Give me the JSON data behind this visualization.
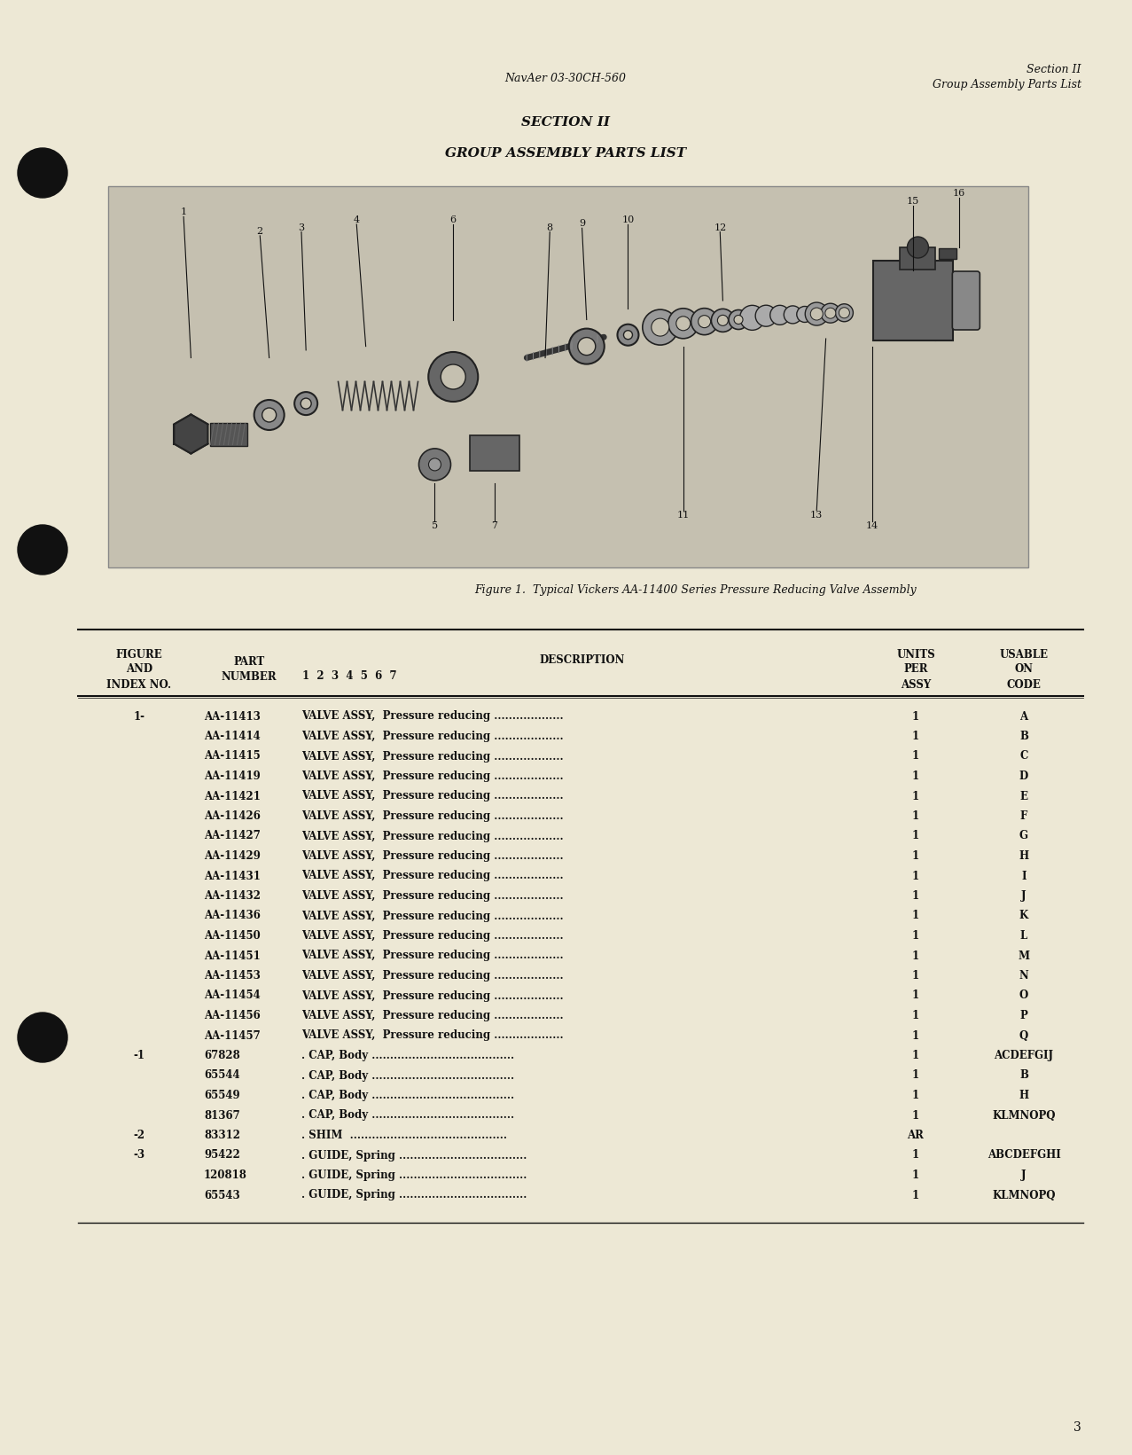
{
  "bg_color": "#ede8d5",
  "header_left": "NavAer 03-30CH-560",
  "header_right_line1": "Section II",
  "header_right_line2": "Group Assembly Parts List",
  "title_line1": "SECTION II",
  "title_line2": "GROUP ASSEMBLY PARTS LIST",
  "figure_caption": "Figure 1.  Typical Vickers AA-11400 Series Pressure Reducing Valve Assembly",
  "table_rows": [
    [
      "1-",
      "AA-11413",
      "VALVE ASSY,  Pressure reducing ...................",
      "1",
      "A"
    ],
    [
      "",
      "AA-11414",
      "VALVE ASSY,  Pressure reducing ...................",
      "1",
      "B"
    ],
    [
      "",
      "AA-11415",
      "VALVE ASSY,  Pressure reducing ...................",
      "1",
      "C"
    ],
    [
      "",
      "AA-11419",
      "VALVE ASSY,  Pressure reducing ...................",
      "1",
      "D"
    ],
    [
      "",
      "AA-11421",
      "VALVE ASSY,  Pressure reducing ...................",
      "1",
      "E"
    ],
    [
      "",
      "AA-11426",
      "VALVE ASSY,  Pressure reducing ...................",
      "1",
      "F"
    ],
    [
      "",
      "AA-11427",
      "VALVE ASSY,  Pressure reducing ...................",
      "1",
      "G"
    ],
    [
      "",
      "AA-11429",
      "VALVE ASSY,  Pressure reducing ...................",
      "1",
      "H"
    ],
    [
      "",
      "AA-11431",
      "VALVE ASSY,  Pressure reducing ...................",
      "1",
      "I"
    ],
    [
      "",
      "AA-11432",
      "VALVE ASSY,  Pressure reducing ...................",
      "1",
      "J"
    ],
    [
      "",
      "AA-11436",
      "VALVE ASSY,  Pressure reducing ...................",
      "1",
      "K"
    ],
    [
      "",
      "AA-11450",
      "VALVE ASSY,  Pressure reducing ...................",
      "1",
      "L"
    ],
    [
      "",
      "AA-11451",
      "VALVE ASSY,  Pressure reducing ...................",
      "1",
      "M"
    ],
    [
      "",
      "AA-11453",
      "VALVE ASSY,  Pressure reducing ...................",
      "1",
      "N"
    ],
    [
      "",
      "AA-11454",
      "VALVE ASSY,  Pressure reducing ...................",
      "1",
      "O"
    ],
    [
      "",
      "AA-11456",
      "VALVE ASSY,  Pressure reducing ...................",
      "1",
      "P"
    ],
    [
      "",
      "AA-11457",
      "VALVE ASSY,  Pressure reducing ...................",
      "1",
      "Q"
    ],
    [
      "-1",
      "67828",
      ". CAP, Body .......................................",
      "1",
      "ACDEFGIJ"
    ],
    [
      "",
      "65544",
      ". CAP, Body .......................................",
      "1",
      "B"
    ],
    [
      "",
      "65549",
      ". CAP, Body .......................................",
      "1",
      "H"
    ],
    [
      "",
      "81367",
      ". CAP, Body .......................................",
      "1",
      "KLMNOPQ"
    ],
    [
      "-2",
      "83312",
      ". SHIM  ...........................................",
      "AR",
      ""
    ],
    [
      "-3",
      "95422",
      ". GUIDE, Spring ...................................",
      "1",
      "ABCDEFGHI"
    ],
    [
      "",
      "120818",
      ". GUIDE, Spring ...................................",
      "1",
      "J"
    ],
    [
      "",
      "65543",
      ". GUIDE, Spring ...................................",
      "1",
      "KLMNOPQ"
    ]
  ],
  "page_number": "3"
}
